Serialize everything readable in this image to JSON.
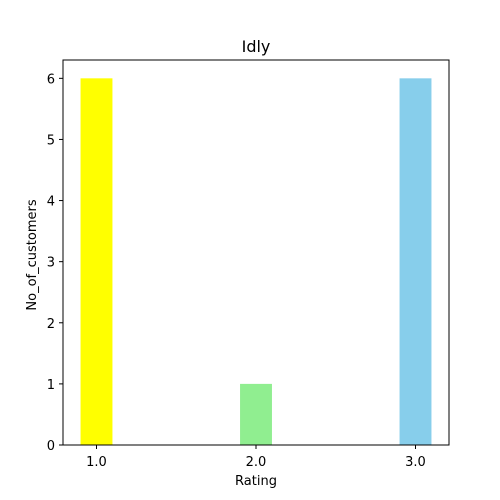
{
  "chart_data": {
    "type": "bar",
    "title": "Idly",
    "xlabel": "Rating",
    "ylabel": "No_of_customers",
    "categories": [
      "1.0",
      "2.0",
      "3.0"
    ],
    "x": [
      1.0,
      2.0,
      3.0
    ],
    "values": [
      6,
      1,
      6
    ],
    "colors": [
      "#ffff00",
      "#90ee90",
      "#87ceeb"
    ],
    "xlim": [
      0.79,
      3.21
    ],
    "ylim": [
      0,
      6.3
    ],
    "yticks": [
      0,
      1,
      2,
      3,
      4,
      5,
      6
    ],
    "grid": false,
    "legend": "none"
  }
}
